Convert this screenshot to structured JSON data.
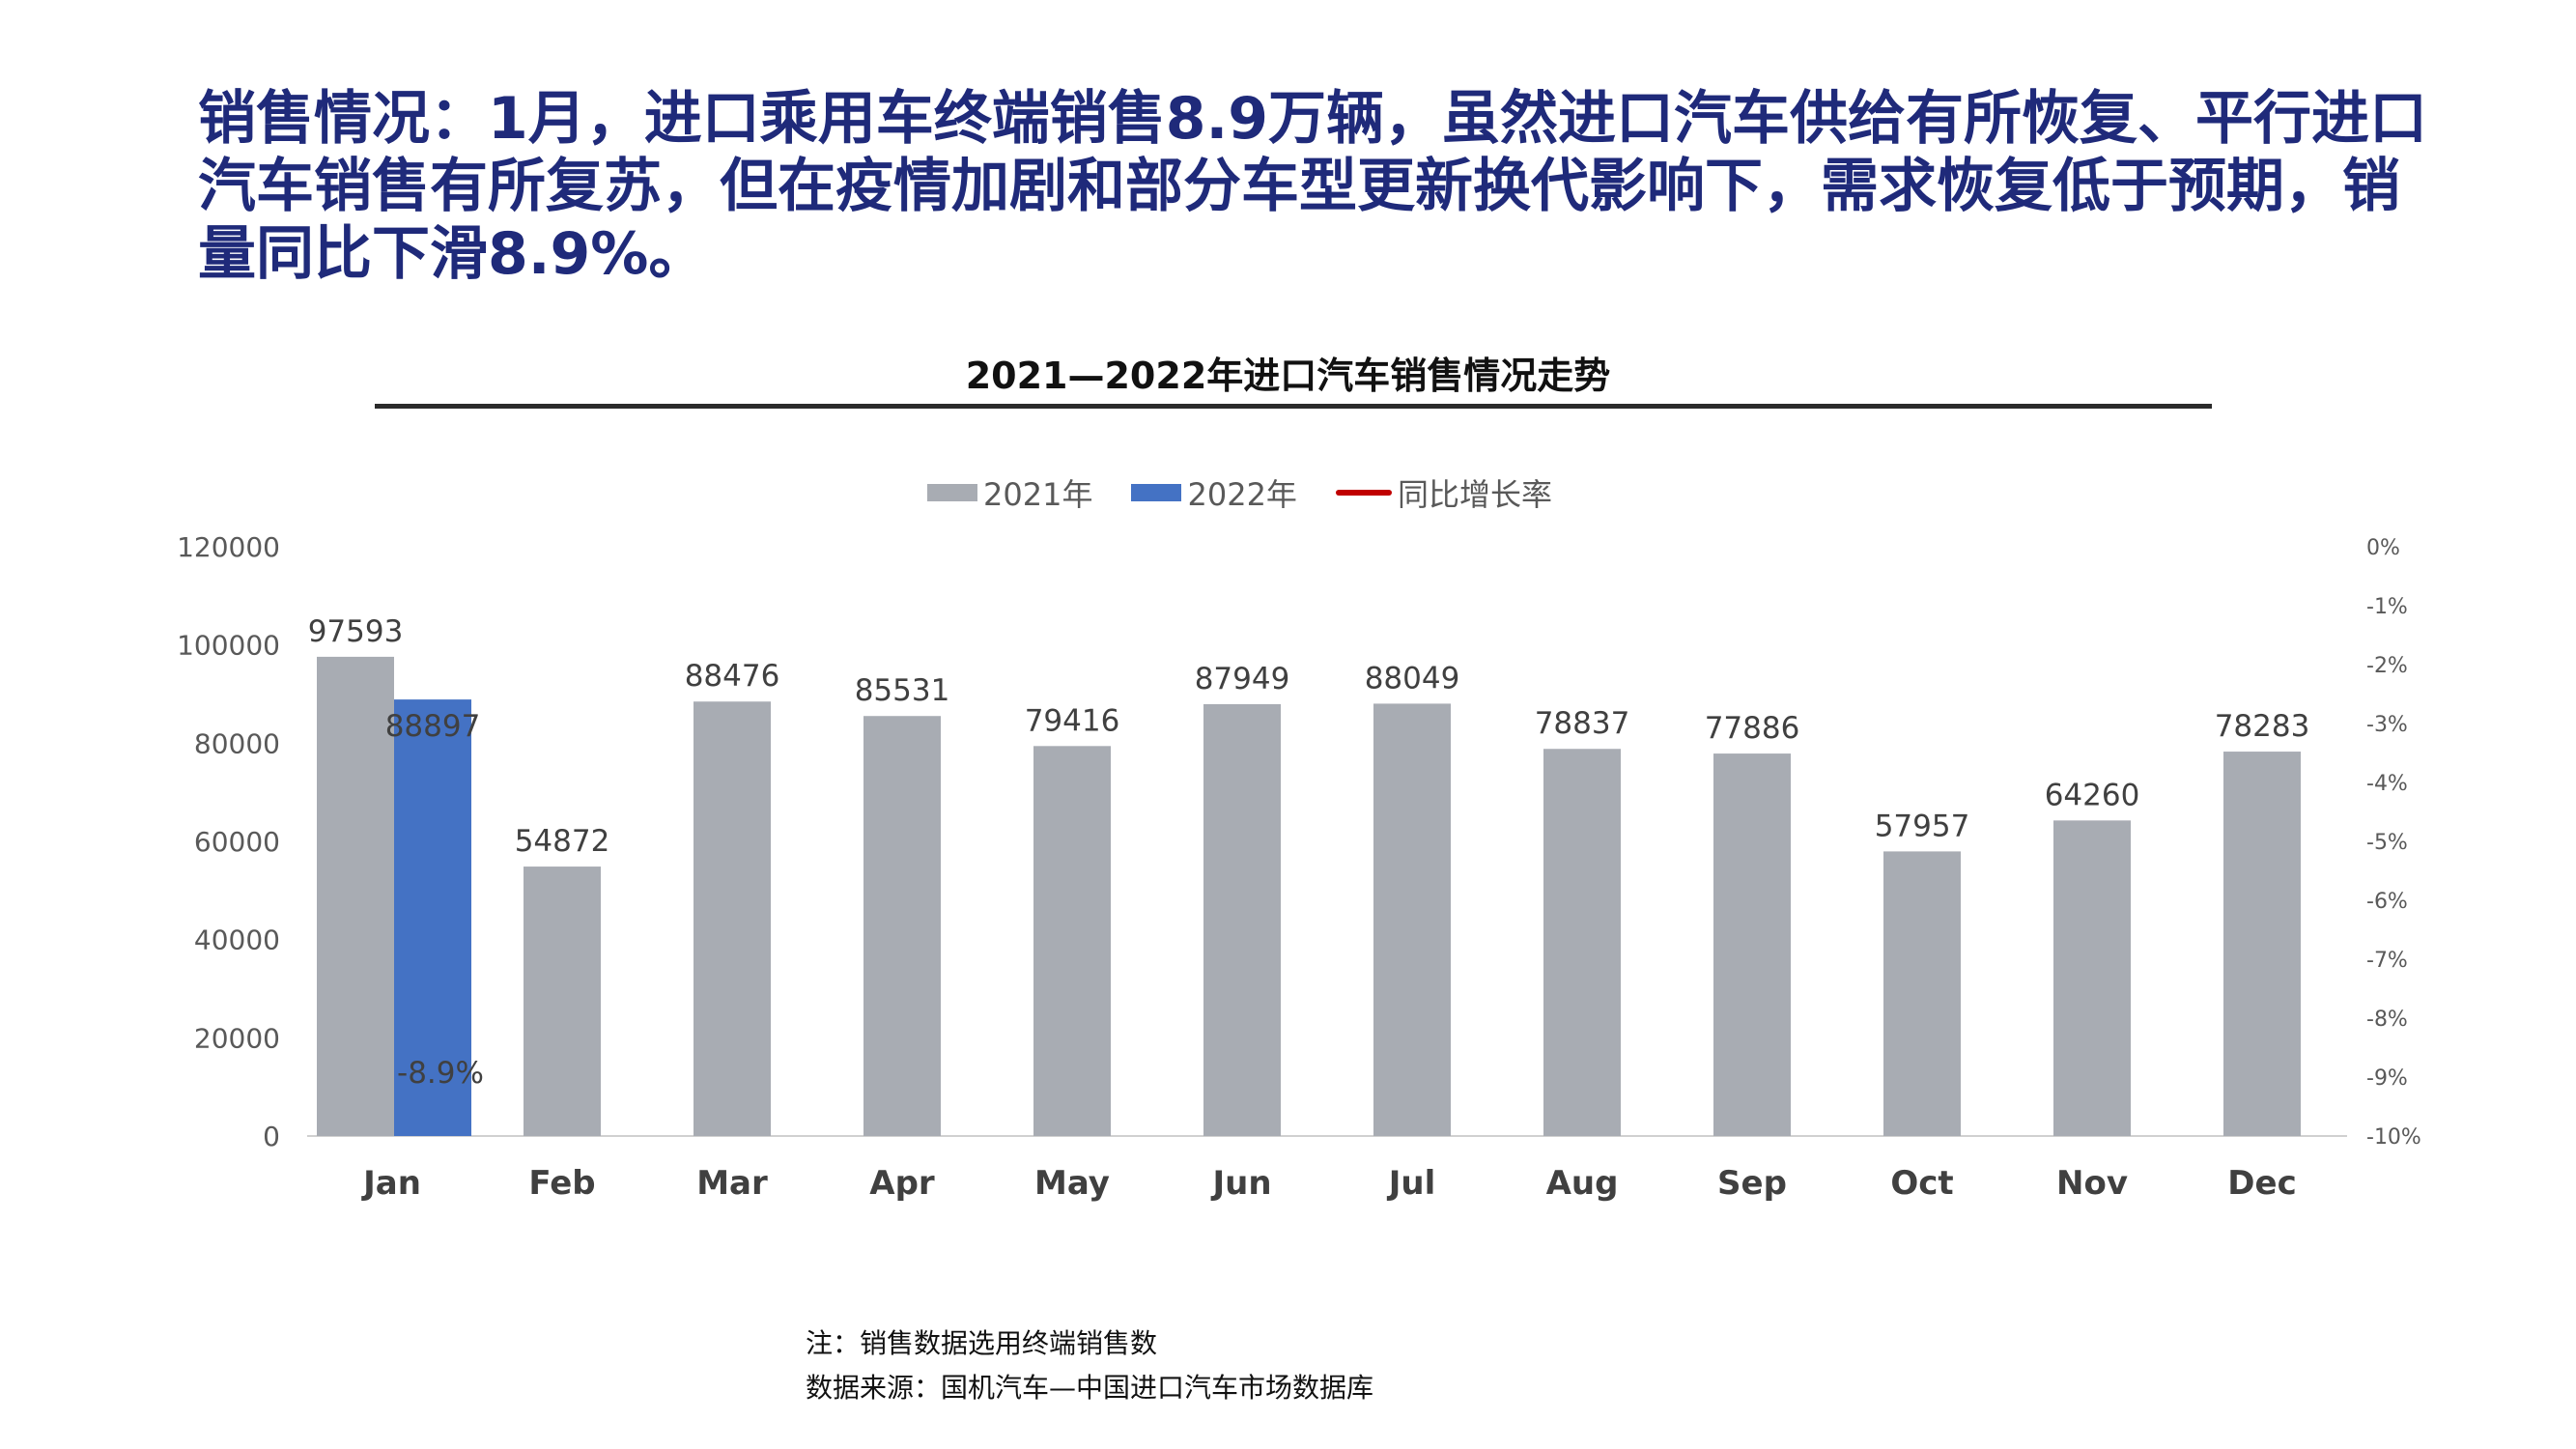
{
  "headline": "销售情况：1月，进口乘用车终端销售8.9万辆，虽然进口汽车供给有所恢复、平行进口汽车销售有所复苏，但在疫情加剧和部分车型更新换代影响下，需求恢复低于预期，销量同比下滑8.9%。",
  "colors": {
    "headline": "#1f2a7a",
    "series_2021": "#a8acb3",
    "series_2022": "#4472c4",
    "growth_line": "#c00000"
  },
  "chart_data": {
    "type": "bar",
    "title": "2021—2022年进口汽车销售情况走势",
    "categories": [
      "Jan",
      "Feb",
      "Mar",
      "Apr",
      "May",
      "Jun",
      "Jul",
      "Aug",
      "Sep",
      "Oct",
      "Nov",
      "Dec"
    ],
    "series": [
      {
        "name": "2021年",
        "type": "bar",
        "values": [
          97593,
          54872,
          88476,
          85531,
          79416,
          87949,
          88049,
          78837,
          77886,
          57957,
          64260,
          78283
        ]
      },
      {
        "name": "2022年",
        "type": "bar",
        "values": [
          88897,
          null,
          null,
          null,
          null,
          null,
          null,
          null,
          null,
          null,
          null,
          null
        ]
      },
      {
        "name": "同比增长率",
        "type": "line",
        "axis": "right",
        "values": [
          -8.9,
          null,
          null,
          null,
          null,
          null,
          null,
          null,
          null,
          null,
          null,
          null
        ],
        "labels": [
          "-8.9%",
          null,
          null,
          null,
          null,
          null,
          null,
          null,
          null,
          null,
          null,
          null
        ]
      }
    ],
    "ylim": [
      0,
      120000
    ],
    "yticks": [
      "0",
      "20000",
      "40000",
      "60000",
      "80000",
      "100000",
      "120000"
    ],
    "y2lim": [
      -10,
      0
    ],
    "y2ticks": [
      "-10%",
      "-9%",
      "-8%",
      "-7%",
      "-6%",
      "-5%",
      "-4%",
      "-3%",
      "-2%",
      "-1%",
      "0%"
    ],
    "legend_position": "top",
    "grid": false
  },
  "notes": {
    "note": "注：销售数据选用终端销售数",
    "source": "数据来源：国机汽车—中国进口汽车市场数据库"
  }
}
